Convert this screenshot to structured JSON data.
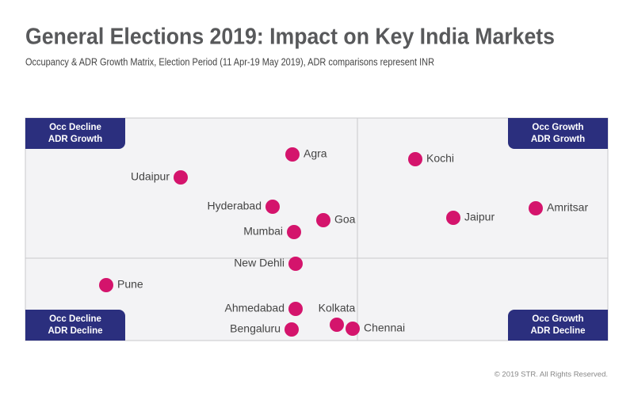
{
  "chart_data": {
    "type": "scatter",
    "title": "General Elections 2019: Impact on Key India Markets",
    "subtitle": "Occupancy & ADR Growth Matrix, Election Period (11 Apr-19 May 2019), ADR comparisons represent INR",
    "quadrants": [
      {
        "lines": [
          "Occ Decline",
          "ADR Growth"
        ]
      },
      {
        "lines": [
          "Occ Growth",
          "ADR Growth"
        ]
      },
      {
        "lines": [
          "Occ Decline",
          "ADR Decline"
        ]
      },
      {
        "lines": [
          "Occ Growth",
          "ADR Decline"
        ]
      }
    ],
    "xlim": [
      -41.9,
      31.6
    ],
    "ylim": [
      -10.4,
      17.7
    ],
    "series": [
      {
        "color": "#d4146c",
        "labels": [
          "Agra",
          "Udaipur",
          "Kochi",
          "Hyderabad",
          "Goa",
          "Jaipur",
          "Amritsar",
          "Mumbai",
          "New Dehli",
          "Pune",
          "Ahmedabad",
          "Kolkata",
          "Chennai",
          "Bengaluru"
        ],
        "x": [
          -8.2,
          -22.3,
          7.3,
          -10.7,
          -4.3,
          12.1,
          22.5,
          -8.0,
          -7.8,
          -31.7,
          -7.8,
          -2.6,
          -0.6,
          -8.3
        ],
        "values": [
          13.1,
          10.2,
          12.5,
          6.5,
          4.8,
          5.1,
          6.3,
          3.3,
          -0.7,
          -3.4,
          -6.4,
          -8.4,
          -8.9,
          -9.0
        ]
      }
    ],
    "footer": "© 2019 STR. All Rights Reserved."
  }
}
